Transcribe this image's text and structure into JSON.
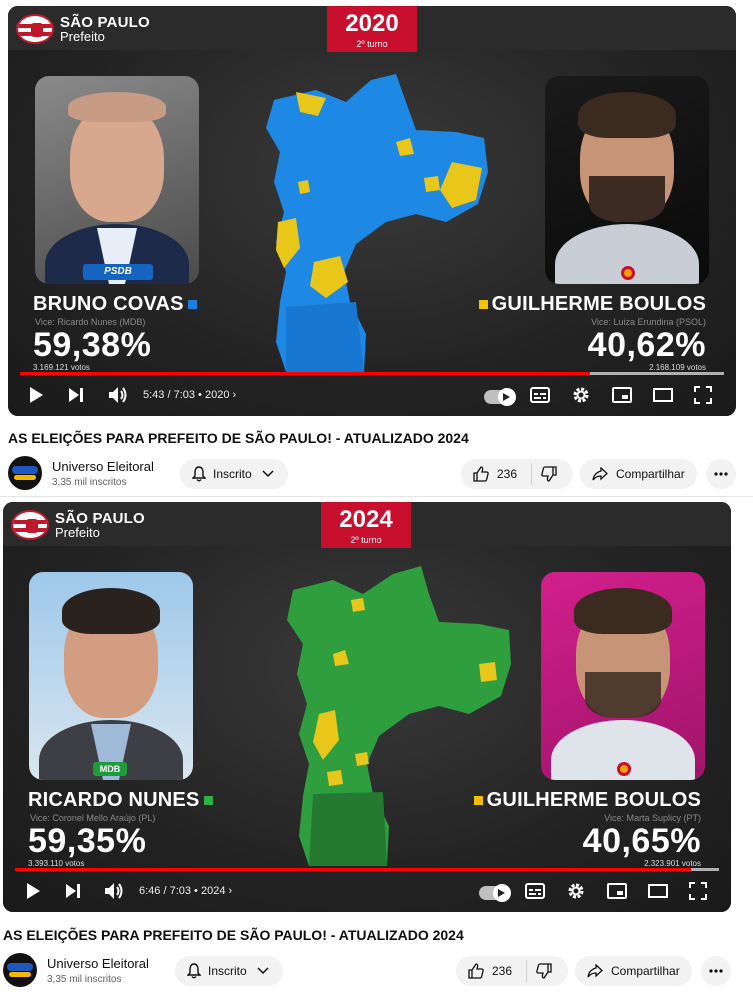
{
  "videos": [
    {
      "logo": {
        "line1": "SÃO PAULO",
        "line2": "Prefeito"
      },
      "year": "2020",
      "turno": "2º turno",
      "left": {
        "name": "BRUNO COVAS",
        "vice": "Vice: Ricardo Nunes (MDB)",
        "percent": "59,38%",
        "votes": "3.169.121 votos",
        "party_badge": "PSDB",
        "color": "#1a7fe0"
      },
      "right": {
        "name": "GUILHERME BOULOS",
        "vice": "Vice: Luiza Erundina (PSOL)",
        "percent": "40,62%",
        "votes": "2.168.109 votos",
        "color": "#f2c200"
      },
      "map_colors": {
        "main": "#1e88e5",
        "secondary": "#e8c61a"
      },
      "player": {
        "time": "5:43 / 7:03",
        "chapter": "2020",
        "progress": 0.81
      },
      "title": "AS ELEIÇÕES PARA PREFEITO DE SÃO PAULO! - ATUALIZADO 2024",
      "channel": {
        "name": "Universo Eleitoral",
        "subscribers": "3,35 mil inscritos"
      },
      "subscribe_label": "Inscrito",
      "likes": "236",
      "share_label": "Compartilhar"
    },
    {
      "logo": {
        "line1": "SÃO PAULO",
        "line2": "Prefeito"
      },
      "year": "2024",
      "turno": "2º turno",
      "left": {
        "name": "RICARDO NUNES",
        "vice": "Vice: Coronel Mello Araújo (PL)",
        "percent": "59,35%",
        "votes": "3.393.110 votos",
        "party_badge": "MDB",
        "color": "#2bb34a"
      },
      "right": {
        "name": "GUILHERME BOULOS",
        "vice": "Vice: Marta Suplicy (PT)",
        "percent": "40,65%",
        "votes": "2.323.901 votos",
        "color": "#f2c200"
      },
      "map_colors": {
        "main": "#2e9e3e",
        "secondary": "#e8c61a"
      },
      "player": {
        "time": "6:46 / 7:03",
        "chapter": "2024",
        "progress": 0.96
      },
      "title": "AS ELEIÇÕES PARA PREFEITO DE SÃO PAULO! - ATUALIZADO 2024",
      "channel": {
        "name": "Universo Eleitoral",
        "subscribers": "3,35 mil inscritos"
      },
      "subscribe_label": "Inscrito",
      "likes": "236",
      "share_label": "Compartilhar"
    }
  ]
}
